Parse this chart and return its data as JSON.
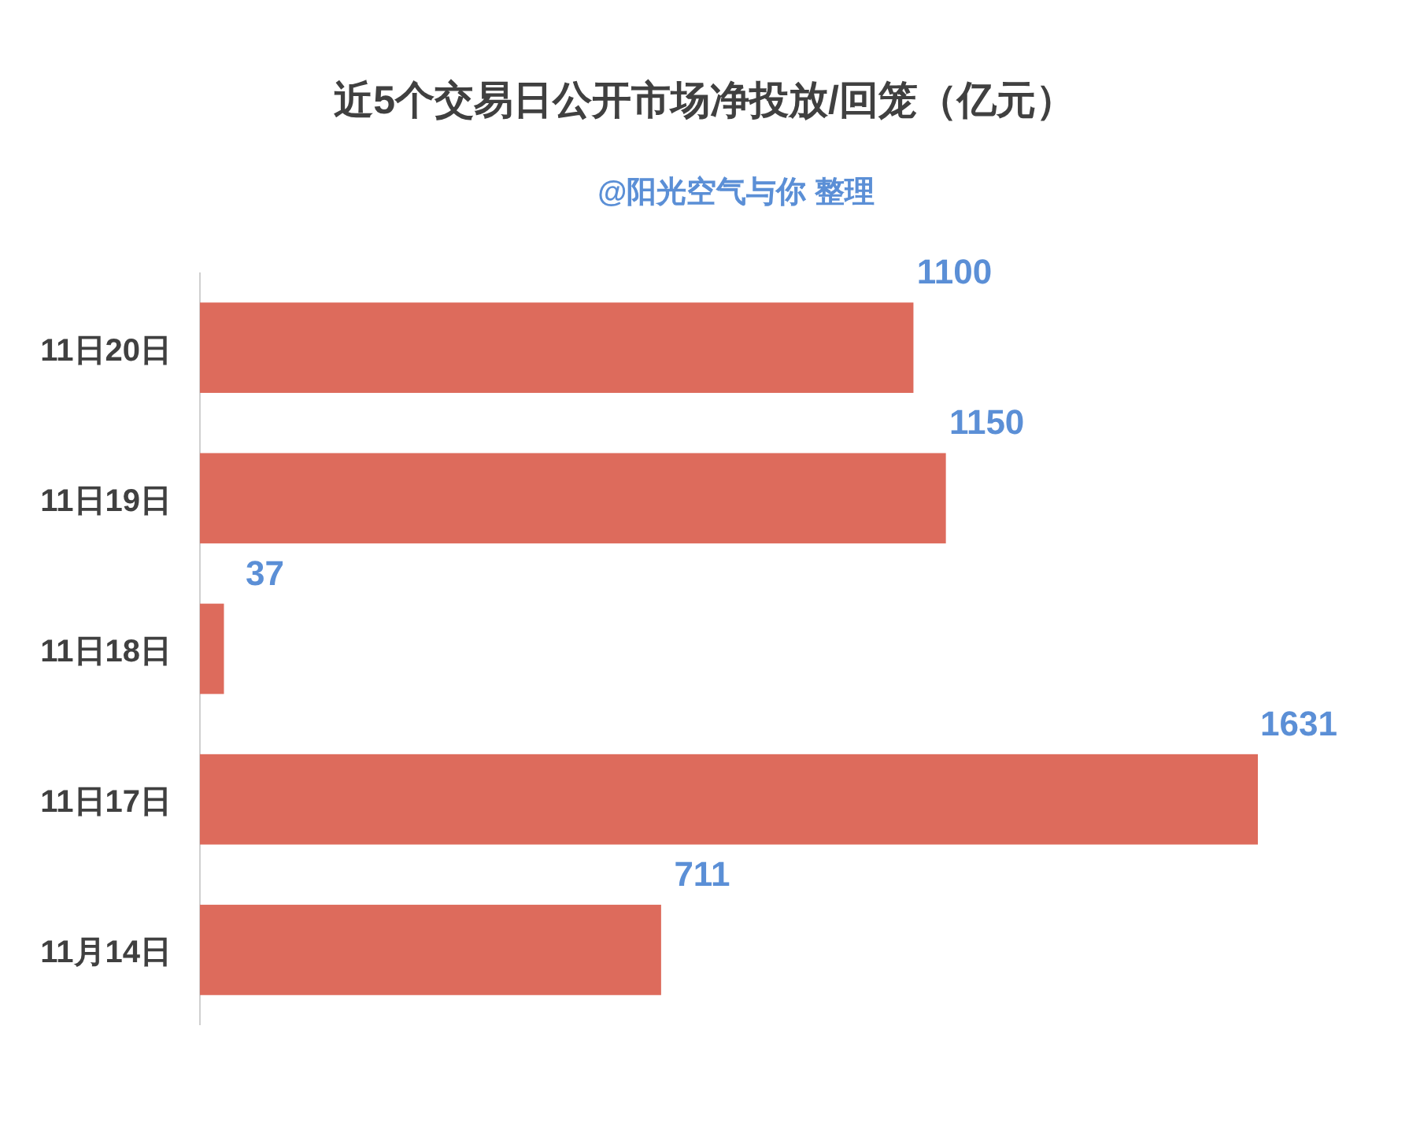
{
  "chart_data": {
    "type": "bar",
    "orientation": "horizontal",
    "title": "近5个交易日公开市场净投放/回笼（亿元）",
    "subtitle": "@阳光空气与你 整理",
    "categories": [
      "11日20日",
      "11日19日",
      "11日18日",
      "11日17日",
      "11月14日"
    ],
    "series": [
      {
        "color": "#dd6b5c",
        "values": [
          1100,
          1150,
          37,
          1631,
          711
        ]
      }
    ],
    "data_labels": true
  }
}
